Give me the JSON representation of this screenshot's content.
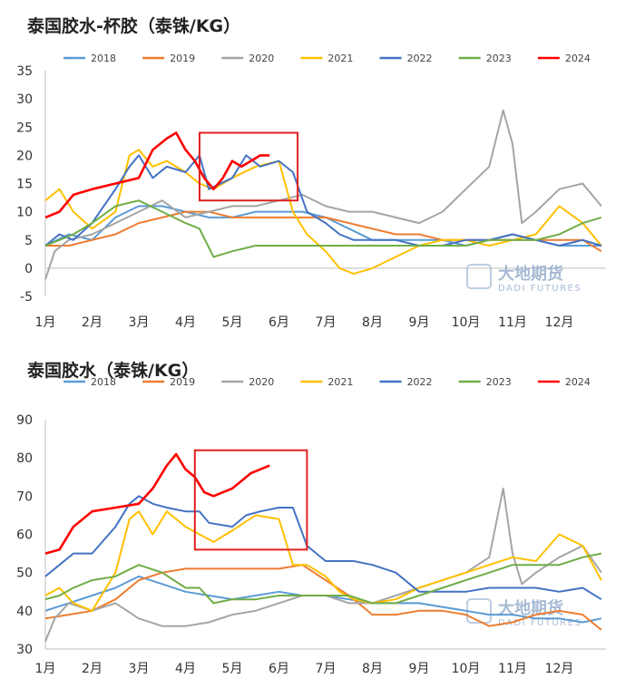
{
  "watermark": {
    "main": "大地期货",
    "sub": "DADI FUTURES"
  },
  "charts": [
    {
      "title": "泰国胶水-杯胶（泰铢/KG）"
    },
    {
      "title": "泰国胶水（泰铢/KG）"
    }
  ],
  "chart_data": [
    {
      "type": "line",
      "title": "泰国胶水-杯胶（泰铢/KG）",
      "xlabel": "",
      "ylabel": "",
      "ylim": [
        -5,
        35
      ],
      "yticks": [
        -5,
        0,
        5,
        10,
        15,
        20,
        25,
        30,
        35
      ],
      "categories": [
        "1月",
        "2月",
        "3月",
        "4月",
        "5月",
        "6月",
        "7月",
        "8月",
        "9月",
        "10月",
        "11月",
        "12月"
      ],
      "x_note": "x values are month position (1 = start of Jan, 13 = end of Dec)",
      "legend": "top",
      "grid": false,
      "annotation_box": {
        "x": [
          4.3,
          6.4
        ],
        "y": [
          12,
          24
        ]
      },
      "series": [
        {
          "name": "2018",
          "color": "#5b9bd5",
          "x": [
            1,
            1.5,
            2,
            2.5,
            3,
            3.5,
            4,
            4.5,
            5,
            5.5,
            6,
            6.5,
            7,
            7.5,
            8,
            8.5,
            9,
            9.5,
            10,
            10.5,
            11,
            11.5,
            12,
            12.5,
            12.9
          ],
          "values": [
            4,
            6,
            5,
            9,
            11,
            11,
            10,
            9,
            9,
            10,
            10,
            10,
            9,
            7,
            5,
            5,
            5,
            5,
            4,
            5,
            6,
            5,
            4,
            4,
            4
          ]
        },
        {
          "name": "2019",
          "color": "#ed7d31",
          "x": [
            1,
            1.5,
            2,
            2.5,
            3,
            3.5,
            4,
            4.5,
            5,
            5.5,
            6,
            6.5,
            7,
            7.5,
            8,
            8.5,
            9,
            9.5,
            10,
            10.5,
            11,
            11.5,
            12,
            12.5,
            12.9
          ],
          "values": [
            4,
            4,
            5,
            6,
            8,
            9,
            10,
            10,
            9,
            9,
            9,
            9,
            9,
            8,
            7,
            6,
            6,
            5,
            5,
            5,
            5,
            5,
            5,
            5,
            3
          ]
        },
        {
          "name": "2020",
          "color": "#a5a5a5",
          "x": [
            1,
            1.2,
            1.5,
            2,
            2.5,
            3,
            3.5,
            4,
            4.5,
            5,
            5.5,
            6,
            6.5,
            7,
            7.5,
            8,
            8.5,
            9,
            9.5,
            10,
            10.5,
            10.8,
            11,
            11.2,
            11.5,
            12,
            12.5,
            12.9
          ],
          "values": [
            -2,
            3,
            5,
            6,
            8,
            10,
            12,
            9,
            10,
            11,
            11,
            12,
            13,
            11,
            10,
            10,
            9,
            8,
            10,
            14,
            18,
            28,
            22,
            8,
            10,
            14,
            15,
            11
          ]
        },
        {
          "name": "2021",
          "color": "#ffc000",
          "x": [
            1,
            1.3,
            1.6,
            2,
            2.5,
            2.8,
            3,
            3.3,
            3.6,
            4,
            4.3,
            4.6,
            5,
            5.5,
            6,
            6.3,
            6.6,
            7,
            7.3,
            7.6,
            8,
            8.5,
            9,
            9.5,
            10,
            10.5,
            11,
            11.5,
            12,
            12.5,
            12.9
          ],
          "values": [
            12,
            14,
            10,
            7,
            10,
            20,
            21,
            18,
            19,
            17,
            15,
            14,
            16,
            18,
            19,
            10,
            6,
            3,
            0,
            -1,
            0,
            2,
            4,
            5,
            5,
            4,
            5,
            6,
            11,
            8,
            4
          ]
        },
        {
          "name": "2022",
          "color": "#4472c4",
          "x": [
            1,
            1.3,
            1.6,
            2,
            2.5,
            2.8,
            3,
            3.3,
            3.6,
            4,
            4.3,
            4.5,
            5,
            5.3,
            5.6,
            6,
            6.3,
            6.6,
            7,
            7.3,
            7.6,
            8,
            8.5,
            9,
            9.5,
            10,
            10.5,
            11,
            11.5,
            12,
            12.5,
            12.9
          ],
          "values": [
            4,
            6,
            5,
            8,
            14,
            18,
            20,
            16,
            18,
            17,
            20,
            14,
            16,
            20,
            18,
            19,
            17,
            10,
            8,
            6,
            5,
            5,
            5,
            4,
            4,
            5,
            5,
            6,
            5,
            4,
            5,
            4
          ]
        },
        {
          "name": "2023",
          "color": "#70ad47",
          "x": [
            1,
            1.3,
            1.6,
            2,
            2.5,
            3,
            3.5,
            4,
            4.3,
            4.6,
            5,
            5.5,
            6,
            6.5,
            7,
            7.5,
            8,
            8.5,
            9,
            9.5,
            10,
            10.5,
            11,
            11.5,
            12,
            12.5,
            12.9
          ],
          "values": [
            4,
            5,
            6,
            8,
            11,
            12,
            10,
            8,
            7,
            2,
            3,
            4,
            4,
            4,
            4,
            4,
            4,
            4,
            4,
            4,
            4,
            5,
            5,
            5,
            6,
            8,
            9
          ]
        },
        {
          "name": "2024",
          "color": "#ff0000",
          "x": [
            1,
            1.3,
            1.6,
            2,
            2.5,
            3,
            3.3,
            3.6,
            3.8,
            4,
            4.2,
            4.4,
            4.6,
            4.8,
            5,
            5.2,
            5.4,
            5.6,
            5.8
          ],
          "values": [
            9,
            10,
            13,
            14,
            15,
            16,
            21,
            23,
            24,
            21,
            19,
            16,
            14,
            16,
            19,
            18,
            19,
            20,
            20
          ]
        }
      ]
    },
    {
      "type": "line",
      "title": "泰国胶水（泰铢/KG）",
      "xlabel": "",
      "ylabel": "",
      "ylim": [
        30,
        90
      ],
      "yticks": [
        30,
        40,
        50,
        60,
        70,
        80,
        90
      ],
      "categories": [
        "1月",
        "2月",
        "3月",
        "4月",
        "5月",
        "6月",
        "7月",
        "8月",
        "9月",
        "10月",
        "11月",
        "12月"
      ],
      "x_note": "x values are month position (1 = start of Jan, 13 = end of Dec)",
      "legend": "top",
      "grid": false,
      "annotation_box": {
        "x": [
          4.2,
          6.6
        ],
        "y": [
          56,
          82
        ]
      },
      "series": [
        {
          "name": "2018",
          "color": "#5b9bd5",
          "x": [
            1,
            1.5,
            2,
            2.5,
            3,
            3.5,
            4,
            4.5,
            5,
            5.5,
            6,
            6.5,
            7,
            7.5,
            8,
            8.5,
            9,
            9.5,
            10,
            10.5,
            11,
            11.5,
            12,
            12.5,
            12.9
          ],
          "values": [
            40,
            42,
            44,
            46,
            49,
            47,
            45,
            44,
            43,
            44,
            45,
            44,
            44,
            43,
            42,
            42,
            42,
            41,
            40,
            39,
            39,
            38,
            38,
            37,
            38
          ]
        },
        {
          "name": "2019",
          "color": "#ed7d31",
          "x": [
            1,
            1.5,
            2,
            2.5,
            3,
            3.5,
            4,
            4.5,
            5,
            5.5,
            6,
            6.5,
            7,
            7.5,
            8,
            8.5,
            9,
            9.5,
            10,
            10.5,
            11,
            11.5,
            12,
            12.5,
            12.9
          ],
          "values": [
            38,
            39,
            40,
            43,
            48,
            50,
            51,
            51,
            51,
            51,
            51,
            52,
            48,
            44,
            39,
            39,
            40,
            40,
            39,
            36,
            37,
            39,
            40,
            39,
            35
          ]
        },
        {
          "name": "2020",
          "color": "#a5a5a5",
          "x": [
            1,
            1.2,
            1.5,
            2,
            2.5,
            3,
            3.5,
            4,
            4.5,
            5,
            5.5,
            6,
            6.5,
            7,
            7.5,
            8,
            8.5,
            9,
            9.5,
            10,
            10.5,
            10.8,
            11,
            11.2,
            11.5,
            12,
            12.5,
            12.9
          ],
          "values": [
            32,
            38,
            42,
            40,
            42,
            38,
            36,
            36,
            37,
            39,
            40,
            42,
            44,
            44,
            42,
            42,
            44,
            46,
            48,
            50,
            54,
            72,
            55,
            47,
            50,
            54,
            57,
            50
          ]
        },
        {
          "name": "2021",
          "color": "#ffc000",
          "x": [
            1,
            1.3,
            1.6,
            2,
            2.5,
            2.8,
            3,
            3.3,
            3.6,
            4,
            4.3,
            4.6,
            5,
            5.5,
            6,
            6.3,
            6.6,
            7,
            7.3,
            7.6,
            8,
            8.5,
            9,
            9.5,
            10,
            10.5,
            11,
            11.5,
            12,
            12.5,
            12.9
          ],
          "values": [
            44,
            46,
            42,
            40,
            50,
            64,
            66,
            60,
            66,
            62,
            60,
            58,
            61,
            65,
            64,
            52,
            52,
            49,
            45,
            43,
            42,
            43,
            46,
            48,
            50,
            52,
            54,
            53,
            60,
            57,
            48
          ]
        },
        {
          "name": "2022",
          "color": "#4472c4",
          "x": [
            1,
            1.3,
            1.6,
            2,
            2.5,
            2.8,
            3,
            3.3,
            3.6,
            4,
            4.3,
            4.5,
            5,
            5.3,
            5.6,
            6,
            6.3,
            6.6,
            7,
            7.3,
            7.6,
            8,
            8.5,
            9,
            9.5,
            10,
            10.5,
            11,
            11.5,
            12,
            12.5,
            12.9
          ],
          "values": [
            49,
            52,
            55,
            55,
            62,
            68,
            70,
            68,
            67,
            66,
            66,
            63,
            62,
            65,
            66,
            67,
            67,
            57,
            53,
            53,
            53,
            52,
            50,
            45,
            45,
            45,
            46,
            46,
            46,
            45,
            46,
            43
          ]
        },
        {
          "name": "2023",
          "color": "#70ad47",
          "x": [
            1,
            1.3,
            1.6,
            2,
            2.5,
            3,
            3.5,
            4,
            4.3,
            4.6,
            5,
            5.5,
            6,
            6.5,
            7,
            7.5,
            8,
            8.5,
            9,
            9.5,
            10,
            10.5,
            11,
            11.5,
            12,
            12.5,
            12.9
          ],
          "values": [
            43,
            44,
            46,
            48,
            49,
            52,
            50,
            46,
            46,
            42,
            43,
            43,
            44,
            44,
            44,
            44,
            42,
            42,
            44,
            46,
            48,
            50,
            52,
            52,
            52,
            54,
            55
          ]
        },
        {
          "name": "2024",
          "color": "#ff0000",
          "x": [
            1,
            1.3,
            1.6,
            2,
            2.5,
            3,
            3.3,
            3.6,
            3.8,
            4,
            4.2,
            4.4,
            4.6,
            4.8,
            5,
            5.2,
            5.4,
            5.6,
            5.8
          ],
          "values": [
            55,
            56,
            62,
            66,
            67,
            68,
            72,
            78,
            81,
            77,
            75,
            71,
            70,
            71,
            72,
            74,
            76,
            77,
            78
          ]
        }
      ]
    }
  ]
}
